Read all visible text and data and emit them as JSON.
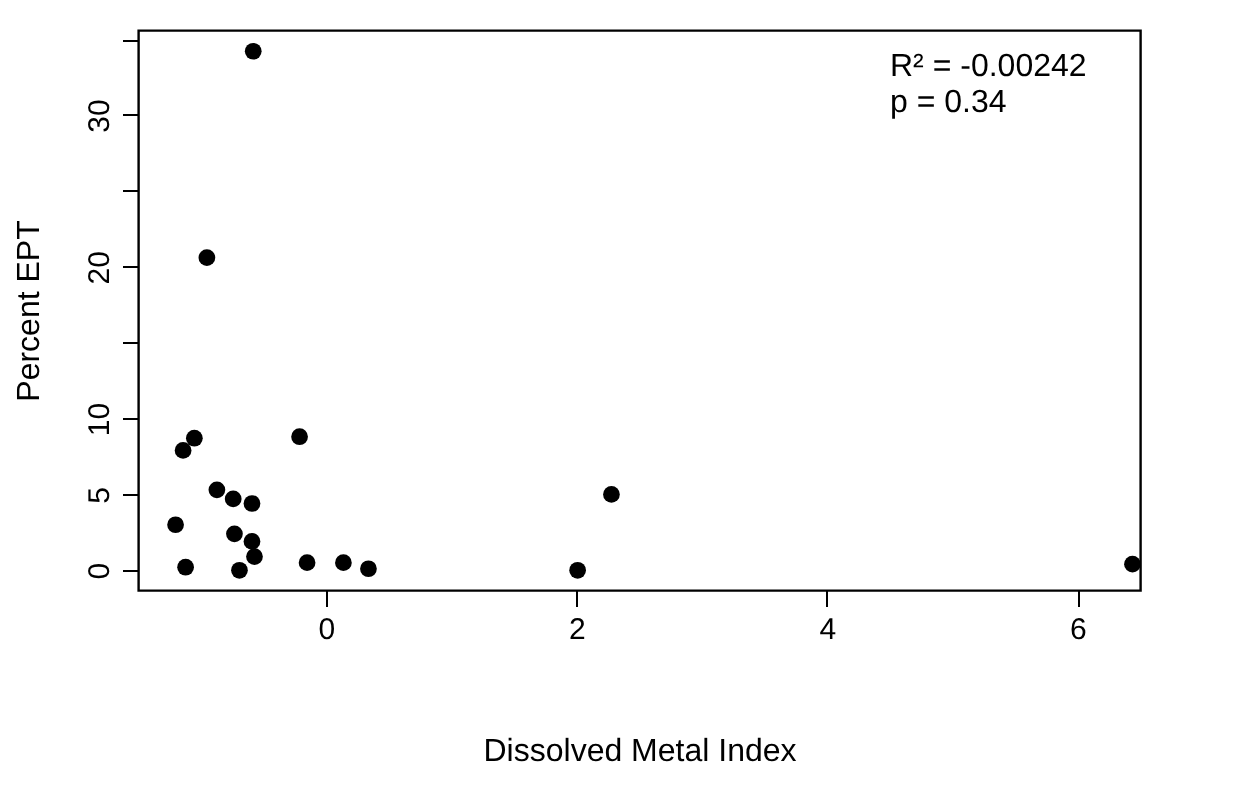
{
  "chart_data": {
    "type": "scatter",
    "xlabel": "Dissolved Metal Index",
    "ylabel": "Percent EPT",
    "x": [
      -0.58,
      -0.95,
      -1.14,
      -1.05,
      -0.21,
      -0.87,
      -0.74,
      -0.59,
      -1.2,
      -0.73,
      -0.59,
      -0.57,
      -1.12,
      -0.69,
      -0.15,
      0.14,
      0.34,
      2.01,
      2.28,
      6.44
    ],
    "series": [
      {
        "color": "#000000",
        "values": [
          34.2,
          20.6,
          7.9,
          8.7,
          8.8,
          5.3,
          4.7,
          4.4,
          3.0,
          2.4,
          1.9,
          0.9,
          0.2,
          0.0,
          0.5,
          0.5,
          0.1,
          0.0,
          5.0,
          0.4
        ]
      }
    ],
    "xlim": [
      -1.5,
      6.5
    ],
    "xticks": [
      0,
      2,
      4,
      6
    ],
    "ylim": [
      -1.3,
      35.6
    ],
    "yticks": [
      0,
      5,
      10,
      {
        "value": 15,
        "label": null
      },
      20,
      {
        "value": 25,
        "label": null
      },
      30,
      {
        "value": 35,
        "label": null
      }
    ],
    "marker": "circle",
    "grid": false,
    "annotations": [
      "R² = -0.00242",
      "p = 0.34"
    ]
  }
}
